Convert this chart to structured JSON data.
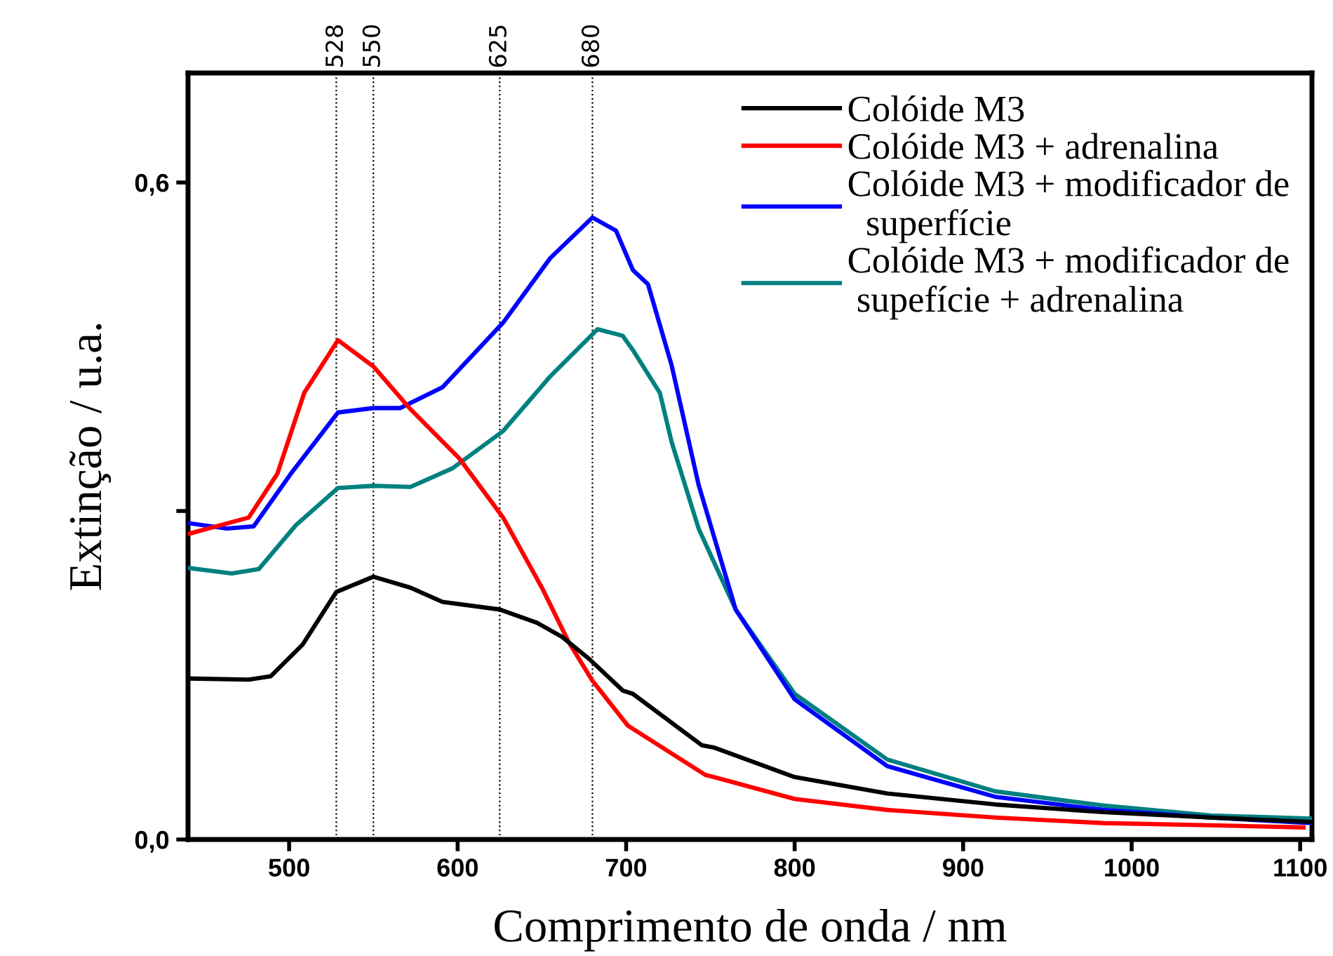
{
  "chart_data": {
    "type": "line",
    "xlabel": "Comprimento de onda / nm",
    "ylabel": "Extinção / u.a.",
    "xlim": [
      440,
      1107
    ],
    "xticks": [
      500,
      600,
      700,
      800,
      900,
      1000,
      1100
    ],
    "ylim": [
      0,
      0.7
    ],
    "yticks": [
      {
        "value": 0,
        "label": "0,0"
      },
      {
        "value": 0.3,
        "label": null
      },
      {
        "value": 0.6,
        "label": "0,6"
      }
    ],
    "grid": false,
    "legend": "top right",
    "line_style": "solid",
    "marker": "none",
    "ref_lines": [
      {
        "axis": "x",
        "value": 528,
        "label": "528",
        "line_style": "dotted",
        "color": "#000000"
      },
      {
        "axis": "x",
        "value": 550,
        "label": "550",
        "line_style": "dotted",
        "color": "#000000"
      },
      {
        "axis": "x",
        "value": 625,
        "label": "625",
        "line_style": "dotted",
        "color": "#000000"
      },
      {
        "axis": "x",
        "value": 680,
        "label": "680",
        "line_style": "dotted",
        "color": "#000000"
      }
    ],
    "series": [
      {
        "name": "Colóide M3",
        "color": "#000000",
        "x": [
          440,
          476,
          489,
          508,
          528,
          550,
          572,
          591,
          625,
          647,
          662,
          678,
          698,
          704,
          745,
          752,
          800,
          855,
          919,
          983,
          1047,
          1107
        ],
        "values": [
          0.147,
          0.146,
          0.149,
          0.178,
          0.226,
          0.24,
          0.23,
          0.217,
          0.21,
          0.198,
          0.185,
          0.165,
          0.136,
          0.133,
          0.086,
          0.084,
          0.057,
          0.042,
          0.032,
          0.025,
          0.02,
          0.016
        ]
      },
      {
        "name": "Colóide M3 + adrenalina",
        "color": "#ff0000",
        "x": [
          440,
          476,
          493,
          509,
          529,
          550,
          572,
          601,
          627,
          650,
          666,
          680,
          701,
          747,
          752,
          800,
          855,
          919,
          983,
          1047,
          1102
        ],
        "values": [
          0.279,
          0.294,
          0.334,
          0.408,
          0.456,
          0.432,
          0.393,
          0.348,
          0.294,
          0.23,
          0.18,
          0.145,
          0.104,
          0.059,
          0.057,
          0.037,
          0.027,
          0.02,
          0.015,
          0.013,
          0.011
        ]
      },
      {
        "name": "Colóide M3 + modificador de\n  superfície",
        "color": "#0000ff",
        "x": [
          440,
          463,
          479,
          501,
          529,
          550,
          566,
          591,
          627,
          655,
          680,
          694,
          704,
          713,
          727,
          743,
          765,
          800,
          855,
          919,
          983,
          1047,
          1107
        ],
        "values": [
          0.289,
          0.284,
          0.286,
          0.334,
          0.39,
          0.394,
          0.394,
          0.413,
          0.472,
          0.531,
          0.568,
          0.556,
          0.52,
          0.507,
          0.433,
          0.324,
          0.21,
          0.128,
          0.067,
          0.039,
          0.027,
          0.02,
          0.015
        ]
      },
      {
        "name": "Colóide M3 + modificador de\n supefície + adrenalina",
        "color": "#008080",
        "x": [
          440,
          466,
          482,
          504,
          529,
          550,
          572,
          597,
          627,
          655,
          683,
          698,
          704,
          720,
          727,
          743,
          765,
          800,
          855,
          919,
          983,
          1047,
          1107
        ],
        "values": [
          0.248,
          0.243,
          0.247,
          0.287,
          0.321,
          0.323,
          0.322,
          0.339,
          0.373,
          0.423,
          0.466,
          0.46,
          0.447,
          0.408,
          0.363,
          0.284,
          0.21,
          0.133,
          0.073,
          0.044,
          0.031,
          0.022,
          0.019
        ]
      }
    ]
  }
}
